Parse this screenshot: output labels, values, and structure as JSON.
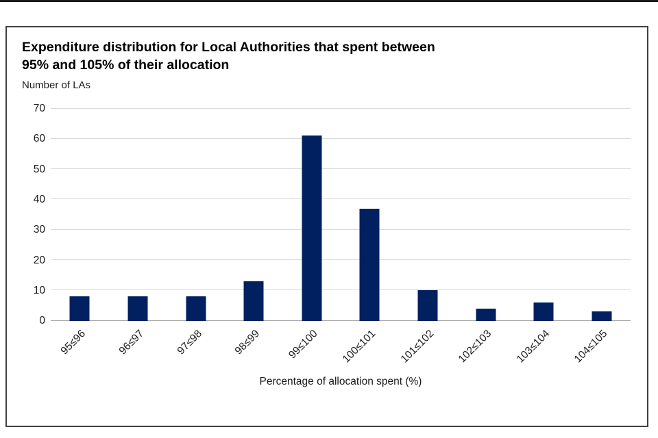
{
  "chart_data": {
    "type": "bar",
    "title": "Expenditure distribution for Local Authorities that spent between 95% and 105% of their allocation",
    "title_lines": [
      "Expenditure distribution for Local Authorities that spent between",
      "95% and 105% of their allocation"
    ],
    "ylabel": "Number of LAs",
    "xlabel": "Percentage of allocation spent (%)",
    "categories": [
      "95≤96",
      "96≤97",
      "97≤98",
      "98≤99",
      "99≤100",
      "100≤101",
      "101≤102",
      "102≤103",
      "103≤104",
      "104≤105"
    ],
    "values": [
      8,
      8,
      8,
      13,
      61,
      37,
      10,
      4,
      6,
      3
    ],
    "ylim": [
      0,
      70
    ],
    "ytick_step": 10,
    "grid": "horizontal",
    "legend": "none",
    "bar_color": "#002060",
    "gridline_color": "#d9d9d9",
    "baseline_color": "#a6a6a6"
  }
}
